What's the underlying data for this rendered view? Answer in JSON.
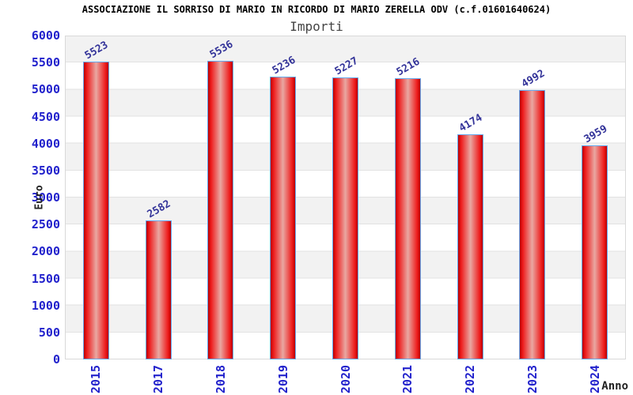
{
  "header": {
    "title": "ASSOCIAZIONE IL SORRISO DI MARIO IN RICORDO DI MARIO ZERELLA ODV (c.f.01601640624)",
    "subtitle": "Importi"
  },
  "chart_data": {
    "type": "bar",
    "title": "ASSOCIAZIONE IL SORRISO DI MARIO IN RICORDO DI MARIO ZERELLA ODV (c.f.01601640624)",
    "subtitle": "Importi",
    "categories": [
      "2015",
      "2017",
      "2018",
      "2019",
      "2020",
      "2021",
      "2022",
      "2023",
      "2024"
    ],
    "values": [
      5523,
      2582,
      5536,
      5236,
      5227,
      5216,
      4174,
      4992,
      3959
    ],
    "xlabel": "Anno",
    "ylabel": "Euro",
    "ylim": [
      0,
      6000
    ],
    "ytick_step": 500,
    "grid": true,
    "legend": "none",
    "bar_labels_rotation_deg": -30,
    "xtick_rotation_deg": -90
  },
  "colors": {
    "tick_label": "#2222cc",
    "bar_value_label": "#333399",
    "bar_edge": "#66aaee",
    "bar_gradient_outer": "#bb0000",
    "bar_gradient_mid": "#ee1c1c",
    "bar_gradient_center": "#e9a8a2",
    "band_gray": "#f2f2f2",
    "band_white": "#ffffff",
    "gridline": "#e2e2e2",
    "plot_border": "#d9d9d9",
    "title_text": "#000000",
    "subtitle_text": "#444444",
    "axis_title_text": "#222222"
  }
}
